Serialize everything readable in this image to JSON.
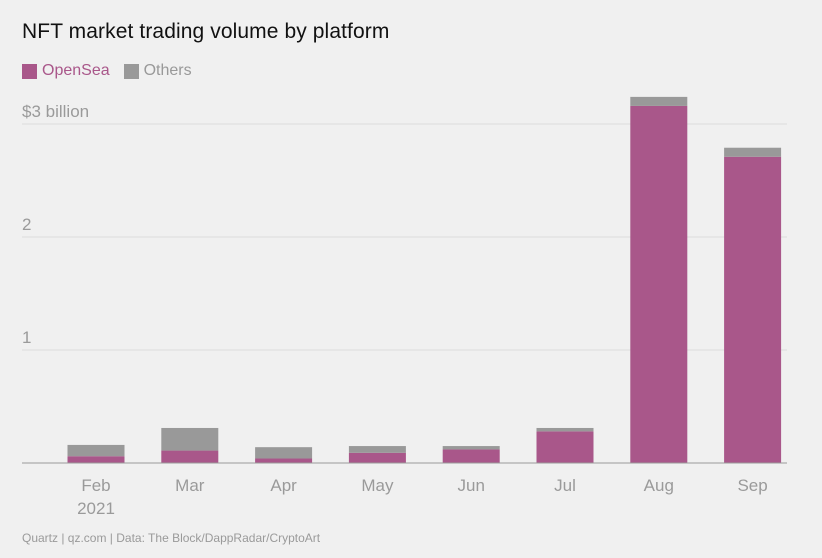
{
  "title": "NFT market trading volume by platform",
  "source": "Quartz | qz.com | Data: The Block/DappRadar/CryptoArt",
  "colors": {
    "opensea": "#a9578a",
    "others": "#999999",
    "grid": "#dcdcdc",
    "axis_text": "#9a9a9a",
    "baseline": "#9a9a9a"
  },
  "chart_data": {
    "type": "bar",
    "stacked": true,
    "categories": [
      "Feb",
      "Mar",
      "Apr",
      "May",
      "Jun",
      "Jul",
      "Aug",
      "Sep"
    ],
    "category_sublabels": [
      "2021",
      "",
      "",
      "",
      "",
      "",
      "",
      ""
    ],
    "series": [
      {
        "name": "OpenSea",
        "values": [
          0.06,
          0.11,
          0.04,
          0.09,
          0.12,
          0.28,
          3.16,
          2.71
        ]
      },
      {
        "name": "Others",
        "values": [
          0.1,
          0.2,
          0.1,
          0.06,
          0.03,
          0.03,
          0.08,
          0.08
        ]
      }
    ],
    "y_ticks": [
      {
        "value": 3,
        "label": "$3 billion"
      },
      {
        "value": 2,
        "label": "2"
      },
      {
        "value": 1,
        "label": "1"
      }
    ],
    "ylim": [
      0,
      3.3
    ],
    "grid": true,
    "legend_position": "top-left"
  }
}
